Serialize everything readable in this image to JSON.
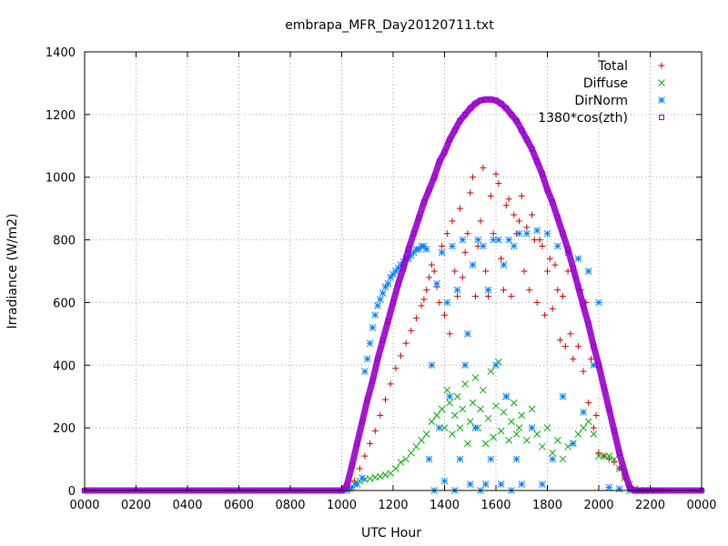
{
  "chart_data": {
    "type": "scatter",
    "title": "embrapa_MFR_Day20120711.txt",
    "xlabel": "UTC Hour",
    "ylabel": "Irradiance (W/m2)",
    "xlim": [
      0,
      24
    ],
    "ylim": [
      0,
      1400
    ],
    "x_ticks": [
      {
        "value": 0,
        "label": "0000"
      },
      {
        "value": 2,
        "label": "0200"
      },
      {
        "value": 4,
        "label": "0400"
      },
      {
        "value": 6,
        "label": "0600"
      },
      {
        "value": 8,
        "label": "0800"
      },
      {
        "value": 10,
        "label": "1000"
      },
      {
        "value": 12,
        "label": "1200"
      },
      {
        "value": 14,
        "label": "1400"
      },
      {
        "value": 16,
        "label": "1600"
      },
      {
        "value": 18,
        "label": "1800"
      },
      {
        "value": 20,
        "label": "2000"
      },
      {
        "value": 22,
        "label": "2200"
      },
      {
        "value": 24,
        "label": "0000"
      }
    ],
    "y_ticks": [
      {
        "value": 0,
        "label": "0"
      },
      {
        "value": 200,
        "label": "200"
      },
      {
        "value": 400,
        "label": "400"
      },
      {
        "value": 600,
        "label": "600"
      },
      {
        "value": 800,
        "label": "800"
      },
      {
        "value": 1000,
        "label": "1000"
      },
      {
        "value": 1200,
        "label": "1200"
      },
      {
        "value": 1400,
        "label": "1400"
      }
    ],
    "grid": true,
    "legend_position": "top-right",
    "series": [
      {
        "name": "Total",
        "marker": "plus",
        "color": "#cc0000",
        "x": [
          10.3,
          10.5,
          10.7,
          10.9,
          11.1,
          11.3,
          11.5,
          11.7,
          11.9,
          12.1,
          12.3,
          12.5,
          12.7,
          12.9,
          13.1,
          13.2,
          13.3,
          13.4,
          13.5,
          13.6,
          13.7,
          13.8,
          13.9,
          14.0,
          14.1,
          14.2,
          14.3,
          14.4,
          14.5,
          14.6,
          14.7,
          14.8,
          14.9,
          15.0,
          15.1,
          15.2,
          15.3,
          15.4,
          15.5,
          15.6,
          15.7,
          15.8,
          15.9,
          16.0,
          16.1,
          16.2,
          16.3,
          16.4,
          16.5,
          16.6,
          16.7,
          16.8,
          16.9,
          17.0,
          17.1,
          17.2,
          17.3,
          17.4,
          17.5,
          17.6,
          17.7,
          17.8,
          17.9,
          18.0,
          18.1,
          18.2,
          18.3,
          18.4,
          18.5,
          18.6,
          18.7,
          18.8,
          18.9,
          19.0,
          19.1,
          19.2,
          19.3,
          19.4,
          19.5,
          19.6,
          19.7,
          19.8,
          19.9,
          20.0,
          20.2,
          20.4,
          20.6,
          20.8,
          21.0,
          21.2,
          21.4,
          21.6,
          21.8,
          22.0
        ],
        "values": [
          5,
          30,
          70,
          110,
          150,
          190,
          240,
          290,
          340,
          390,
          430,
          470,
          510,
          550,
          590,
          610,
          640,
          680,
          720,
          700,
          650,
          600,
          780,
          560,
          820,
          500,
          860,
          700,
          620,
          900,
          680,
          760,
          820,
          950,
          1000,
          620,
          780,
          860,
          1030,
          700,
          620,
          940,
          820,
          1010,
          980,
          740,
          640,
          910,
          930,
          620,
          880,
          820,
          860,
          940,
          700,
          840,
          640,
          880,
          800,
          600,
          800,
          780,
          560,
          700,
          740,
          580,
          720,
          640,
          480,
          620,
          460,
          700,
          500,
          420,
          680,
          460,
          640,
          380,
          600,
          280,
          420,
          200,
          240,
          120,
          110,
          100,
          90,
          70,
          40,
          10,
          0,
          0,
          0,
          0
        ]
      },
      {
        "name": "Diffuse",
        "marker": "cross",
        "color": "#00aa00",
        "x": [
          10.3,
          10.5,
          10.7,
          10.9,
          11.1,
          11.3,
          11.5,
          11.7,
          11.9,
          12.1,
          12.3,
          12.5,
          12.7,
          12.9,
          13.1,
          13.3,
          13.5,
          13.7,
          13.9,
          14.0,
          14.1,
          14.2,
          14.3,
          14.4,
          14.5,
          14.6,
          14.7,
          14.8,
          14.9,
          15.0,
          15.1,
          15.2,
          15.3,
          15.4,
          15.5,
          15.6,
          15.7,
          15.8,
          15.9,
          16.0,
          16.1,
          16.2,
          16.3,
          16.4,
          16.5,
          16.6,
          16.7,
          16.8,
          16.9,
          17.0,
          17.2,
          17.4,
          17.6,
          17.8,
          18.0,
          18.2,
          18.4,
          18.6,
          18.8,
          19.0,
          19.2,
          19.4,
          19.6,
          19.8,
          20.0,
          20.2,
          20.4,
          20.6,
          20.8,
          21.0,
          21.2,
          21.4,
          21.6,
          21.8,
          22.0
        ],
        "values": [
          5,
          20,
          30,
          35,
          38,
          42,
          45,
          50,
          55,
          70,
          90,
          100,
          120,
          140,
          160,
          180,
          220,
          240,
          260,
          200,
          320,
          280,
          180,
          240,
          300,
          200,
          260,
          340,
          150,
          220,
          280,
          360,
          200,
          260,
          320,
          150,
          230,
          380,
          170,
          270,
          410,
          190,
          250,
          300,
          160,
          220,
          280,
          180,
          200,
          240,
          160,
          260,
          180,
          140,
          200,
          120,
          160,
          100,
          140,
          150,
          180,
          200,
          220,
          180,
          110,
          110,
          110,
          100,
          70,
          40,
          20,
          5,
          0,
          0,
          0
        ]
      },
      {
        "name": "DirNorm",
        "marker": "star",
        "color": "#0080ff",
        "x": [
          10.2,
          10.4,
          10.6,
          10.8,
          10.9,
          11.0,
          11.1,
          11.2,
          11.3,
          11.4,
          11.5,
          11.6,
          11.7,
          11.8,
          11.9,
          12.0,
          12.1,
          12.2,
          12.3,
          12.4,
          12.5,
          12.6,
          12.7,
          12.8,
          12.9,
          13.0,
          13.1,
          13.2,
          13.3,
          13.4,
          13.5,
          13.6,
          13.7,
          13.8,
          13.9,
          14.0,
          14.1,
          14.2,
          14.3,
          14.4,
          14.5,
          14.6,
          14.7,
          14.8,
          14.9,
          15.0,
          15.1,
          15.2,
          15.3,
          15.4,
          15.5,
          15.6,
          15.7,
          15.8,
          15.9,
          16.0,
          16.1,
          16.2,
          16.3,
          16.4,
          16.5,
          16.6,
          16.7,
          16.8,
          16.9,
          17.0,
          17.2,
          17.4,
          17.6,
          17.8,
          18.0,
          18.2,
          18.4,
          18.6,
          18.8,
          19.0,
          19.2,
          19.4,
          19.6,
          19.8,
          20.0,
          20.4,
          20.8,
          21.2,
          21.6,
          22.0
        ],
        "values": [
          0,
          10,
          20,
          40,
          380,
          420,
          470,
          520,
          560,
          590,
          610,
          630,
          650,
          660,
          680,
          690,
          700,
          710,
          720,
          730,
          740,
          740,
          750,
          760,
          770,
          770,
          780,
          780,
          770,
          100,
          400,
          0,
          660,
          200,
          760,
          30,
          600,
          300,
          780,
          0,
          640,
          100,
          800,
          400,
          500,
          20,
          720,
          200,
          800,
          0,
          780,
          20,
          640,
          100,
          800,
          400,
          800,
          20,
          720,
          300,
          800,
          0,
          780,
          100,
          820,
          20,
          820,
          200,
          830,
          20,
          820,
          100,
          780,
          300,
          760,
          150,
          740,
          250,
          700,
          400,
          600,
          10,
          5,
          0,
          0,
          0
        ]
      },
      {
        "name": "1380*cos(zth)",
        "marker": "square",
        "color": "#9900cc",
        "x": [
          0,
          10.0,
          10.2,
          10.4,
          10.6,
          10.8,
          11.0,
          11.2,
          11.4,
          11.6,
          11.8,
          12.0,
          12.2,
          12.4,
          12.6,
          12.8,
          13.0,
          13.2,
          13.4,
          13.6,
          13.8,
          14.0,
          14.2,
          14.4,
          14.6,
          14.8,
          15.0,
          15.2,
          15.4,
          15.6,
          15.8,
          16.0,
          16.2,
          16.4,
          16.6,
          16.8,
          17.0,
          17.2,
          17.4,
          17.6,
          17.8,
          18.0,
          18.2,
          18.4,
          18.6,
          18.8,
          19.0,
          19.2,
          19.4,
          19.6,
          19.8,
          20.0,
          20.2,
          20.4,
          20.6,
          20.8,
          21.0,
          21.2,
          21.4,
          21.6,
          21.8,
          22.0,
          22.2,
          22.4,
          24
        ],
        "values": [
          0,
          0,
          15,
          80,
          150,
          220,
          290,
          350,
          420,
          480,
          540,
          600,
          660,
          710,
          770,
          820,
          870,
          920,
          960,
          1000,
          1050,
          1080,
          1120,
          1150,
          1180,
          1200,
          1220,
          1235,
          1245,
          1248,
          1248,
          1245,
          1235,
          1220,
          1200,
          1180,
          1150,
          1120,
          1090,
          1050,
          1010,
          960,
          920,
          870,
          820,
          770,
          710,
          650,
          590,
          530,
          460,
          400,
          330,
          260,
          190,
          120,
          60,
          10,
          0,
          0,
          0,
          0,
          0,
          0,
          0
        ]
      }
    ]
  }
}
